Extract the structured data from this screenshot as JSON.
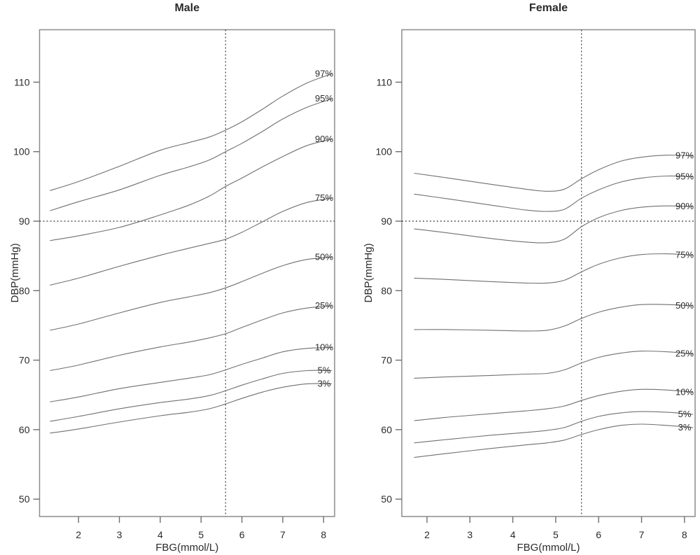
{
  "style": {
    "background": "#ffffff",
    "curve_color": "#707070",
    "axis_color": "#8c8c8c",
    "tick_color": "#6e6e6e",
    "ref_line_color": "#3a3a3a",
    "text_color": "#2b2b2b"
  },
  "chart_data": [
    {
      "type": "line",
      "title": "Male",
      "xlabel": "FBG(mmol/L)",
      "ylabel": "DBP(mmHg)",
      "x_ticks": [
        2,
        3,
        4,
        5,
        6,
        7,
        8
      ],
      "y_ticks": [
        50,
        60,
        70,
        80,
        90,
        100,
        110
      ],
      "xlim": [
        1.05,
        8.3
      ],
      "ylim": [
        47.5,
        117.6
      ],
      "grid": false,
      "legend_position": "curve-end-labels",
      "reference_lines": {
        "dbp": 90,
        "fbg": 5.6
      },
      "x": [
        1.3,
        2,
        3,
        4,
        4.7,
        5.2,
        5.6,
        6,
        6.5,
        7,
        7.6,
        8.2
      ],
      "series": [
        {
          "name": "97%",
          "values": [
            94.4,
            95.7,
            97.9,
            100.2,
            101.3,
            102.1,
            103.1,
            104.3,
            106.1,
            108.0,
            109.9,
            111.2
          ]
        },
        {
          "name": "95%",
          "values": [
            91.5,
            92.8,
            94.5,
            96.6,
            97.8,
            98.8,
            100.0,
            101.2,
            102.9,
            104.7,
            106.4,
            107.6
          ]
        },
        {
          "name": "90%",
          "values": [
            87.2,
            87.9,
            89.1,
            90.9,
            92.3,
            93.6,
            95.0,
            96.2,
            97.8,
            99.3,
            100.9,
            101.8
          ]
        },
        {
          "name": "75%",
          "values": [
            80.8,
            81.8,
            83.5,
            85.1,
            86.1,
            86.8,
            87.4,
            88.4,
            89.9,
            91.4,
            92.7,
            93.3
          ]
        },
        {
          "name": "50%",
          "values": [
            74.3,
            75.2,
            76.8,
            78.3,
            79.1,
            79.7,
            80.4,
            81.3,
            82.5,
            83.6,
            84.5,
            84.8
          ]
        },
        {
          "name": "25%",
          "values": [
            68.5,
            69.3,
            70.7,
            71.9,
            72.6,
            73.2,
            73.8,
            74.7,
            75.8,
            76.8,
            77.5,
            77.8
          ]
        },
        {
          "name": "10%",
          "values": [
            64.0,
            64.7,
            65.9,
            66.8,
            67.4,
            67.9,
            68.6,
            69.4,
            70.3,
            71.2,
            71.7,
            71.8
          ]
        },
        {
          "name": "5%",
          "values": [
            61.2,
            61.9,
            63.0,
            63.9,
            64.4,
            64.9,
            65.6,
            66.4,
            67.3,
            68.1,
            68.5,
            68.5
          ]
        },
        {
          "name": "3%",
          "values": [
            59.5,
            60.1,
            61.1,
            62.0,
            62.5,
            63.0,
            63.7,
            64.5,
            65.4,
            66.1,
            66.6,
            66.6
          ]
        }
      ]
    },
    {
      "type": "line",
      "title": "Female",
      "xlabel": "FBG(mmol/L)",
      "ylabel": "DBP(mmHg)",
      "x_ticks": [
        2,
        3,
        4,
        5,
        6,
        7,
        8
      ],
      "y_ticks": [
        50,
        60,
        70,
        80,
        90,
        100,
        110
      ],
      "xlim": [
        1.4,
        8.25
      ],
      "ylim": [
        47.5,
        117.6
      ],
      "grid": false,
      "legend_position": "curve-end-labels",
      "reference_lines": {
        "dbp": 90,
        "fbg": 5.6
      },
      "x": [
        1.7,
        2.5,
        3.5,
        4.3,
        4.8,
        5.2,
        5.6,
        6,
        6.5,
        7,
        7.6,
        8.2
      ],
      "series": [
        {
          "name": "97%",
          "values": [
            96.9,
            96.2,
            95.3,
            94.6,
            94.3,
            94.6,
            96.1,
            97.4,
            98.6,
            99.2,
            99.5,
            99.4
          ]
        },
        {
          "name": "95%",
          "values": [
            93.9,
            93.2,
            92.3,
            91.6,
            91.4,
            91.7,
            93.3,
            94.5,
            95.6,
            96.2,
            96.5,
            96.4
          ]
        },
        {
          "name": "90%",
          "values": [
            88.9,
            88.3,
            87.5,
            87.0,
            86.9,
            87.4,
            89.2,
            90.5,
            91.5,
            92.0,
            92.2,
            92.1
          ]
        },
        {
          "name": "75%",
          "values": [
            81.8,
            81.6,
            81.3,
            81.1,
            81.1,
            81.5,
            82.7,
            83.8,
            84.7,
            85.2,
            85.3,
            85.1
          ]
        },
        {
          "name": "50%",
          "values": [
            74.4,
            74.4,
            74.3,
            74.2,
            74.3,
            74.9,
            76.0,
            76.9,
            77.6,
            78.0,
            78.0,
            77.8
          ]
        },
        {
          "name": "25%",
          "values": [
            67.4,
            67.6,
            67.8,
            68.0,
            68.1,
            68.6,
            69.6,
            70.4,
            71.0,
            71.3,
            71.2,
            70.9
          ]
        },
        {
          "name": "10%",
          "values": [
            61.3,
            61.8,
            62.3,
            62.7,
            63.0,
            63.4,
            64.2,
            64.9,
            65.5,
            65.8,
            65.7,
            65.4
          ]
        },
        {
          "name": "5%",
          "values": [
            58.1,
            58.6,
            59.2,
            59.6,
            59.9,
            60.3,
            61.2,
            61.9,
            62.4,
            62.6,
            62.5,
            62.2
          ]
        },
        {
          "name": "3%",
          "values": [
            56.0,
            56.6,
            57.3,
            57.8,
            58.1,
            58.5,
            59.3,
            60.0,
            60.6,
            60.8,
            60.6,
            60.3
          ]
        }
      ]
    }
  ]
}
